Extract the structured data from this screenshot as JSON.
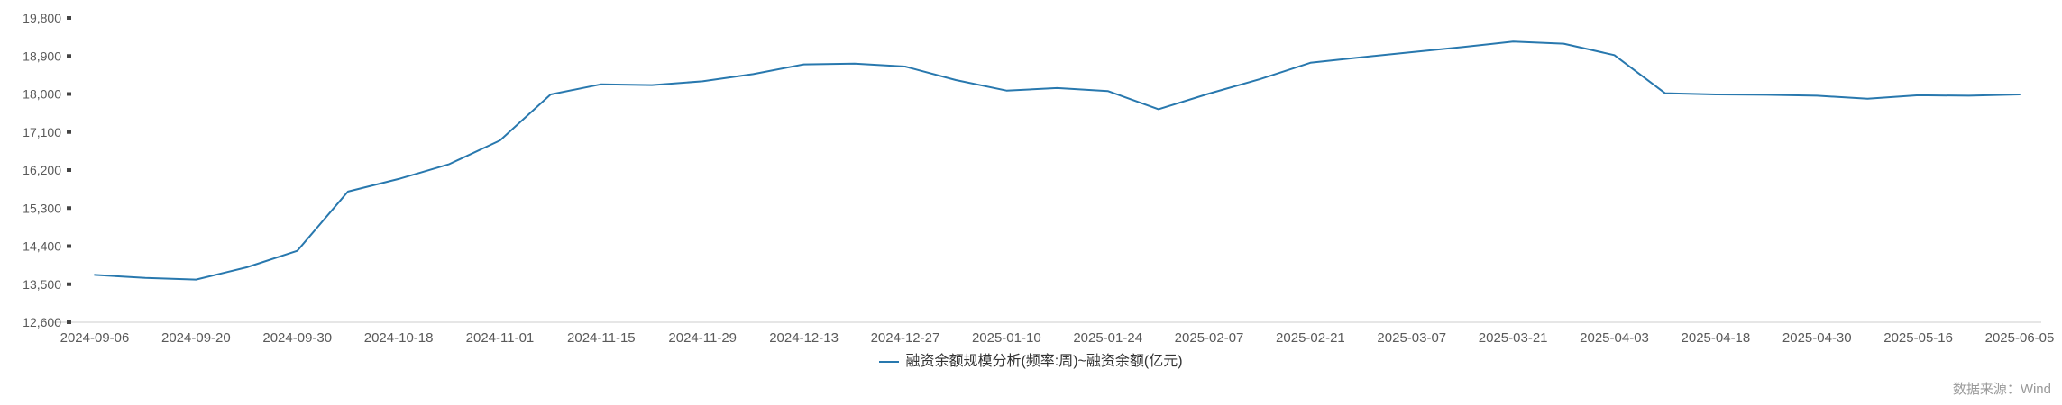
{
  "chart": {
    "source_label": "数据来源：Wind",
    "legend": {
      "label": "融资余额规模分析(频率:周)~融资余额(亿元)"
    },
    "colors": {
      "line": "#2878ae",
      "axis": "#cccccc",
      "tick": "#444444",
      "label": "#595959",
      "source": "#999999"
    }
  },
  "chart_data": {
    "type": "line",
    "title": "融资余额规模分析(频率:周)~融资余额(亿元)",
    "xlabel": "",
    "ylabel": "融资余额(亿元)",
    "ylim": [
      12600,
      19800
    ],
    "grid": false,
    "legend_position": "bottom",
    "y_ticks": [
      19800,
      18900,
      18000,
      17100,
      16200,
      15300,
      14400,
      13500,
      12600
    ],
    "y_tick_labels": [
      "19,800",
      "18,900",
      "18,000",
      "17,100",
      "16,200",
      "15,300",
      "14,400",
      "13,500",
      "12,600"
    ],
    "x_tick_labels": [
      "2024-09-06",
      "2024-09-20",
      "2024-09-30",
      "2024-10-18",
      "2024-11-01",
      "2024-11-15",
      "2024-11-29",
      "2024-12-13",
      "2024-12-27",
      "2025-01-10",
      "2025-01-24",
      "2025-02-07",
      "2025-02-21",
      "2025-03-07",
      "2025-03-21",
      "2025-04-03",
      "2025-04-18",
      "2025-04-30",
      "2025-05-16",
      "2025-06-05"
    ],
    "series": [
      {
        "name": "融资余额规模分析(频率:周)~融资余额(亿元)",
        "x": [
          "2024-09-06",
          "2024-09-13",
          "2024-09-20",
          "2024-09-27",
          "2024-09-30",
          "2024-10-11",
          "2024-10-18",
          "2024-10-25",
          "2024-11-01",
          "2024-11-08",
          "2024-11-15",
          "2024-11-22",
          "2024-11-29",
          "2024-12-06",
          "2024-12-13",
          "2024-12-20",
          "2024-12-27",
          "2025-01-03",
          "2025-01-10",
          "2025-01-17",
          "2025-01-24",
          "2025-01-27",
          "2025-02-07",
          "2025-02-14",
          "2025-02-21",
          "2025-02-28",
          "2025-03-07",
          "2025-03-14",
          "2025-03-21",
          "2025-03-28",
          "2025-04-03",
          "2025-04-11",
          "2025-04-18",
          "2025-04-25",
          "2025-04-30",
          "2025-05-09",
          "2025-05-16",
          "2025-05-23",
          "2025-06-05"
        ],
        "values": [
          13720,
          13650,
          13610,
          13900,
          14290,
          15690,
          15990,
          16340,
          16900,
          17990,
          18230,
          18210,
          18300,
          18470,
          18700,
          18720,
          18650,
          18330,
          18080,
          18140,
          18070,
          17640,
          18010,
          18350,
          18740,
          18870,
          18990,
          19110,
          19240,
          19190,
          18920,
          18020,
          17990,
          17980,
          17960,
          17890,
          17970,
          17960,
          17990
        ]
      }
    ]
  }
}
